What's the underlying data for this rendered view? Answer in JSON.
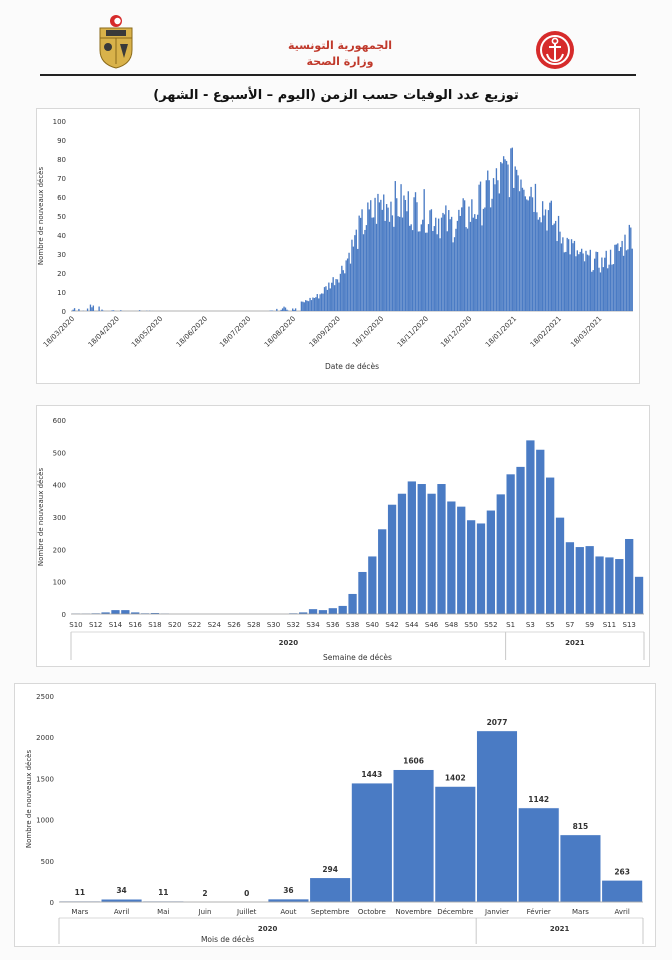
{
  "header": {
    "ministry_line1": "الجمهورية التونسية",
    "ministry_line2": "وزارة الصحة",
    "title": "توزيع عدد الوفيات حسب الزمن (اليوم – الأسبوع - الشهر)"
  },
  "colors": {
    "bar": "#4a7bc4",
    "accent": "#d62b2b"
  },
  "chart_data": [
    {
      "type": "bar",
      "title": "",
      "xlabel": "Date de décès",
      "ylabel": "Nombre de nouveaux décès",
      "ylim": [
        0,
        100
      ],
      "yticks": [
        0,
        10,
        20,
        30,
        40,
        50,
        60,
        70,
        80,
        90,
        100
      ],
      "x_range": [
        "2020-03-18",
        "2021-04-10"
      ],
      "tick_labels": [
        "18/03/2020",
        "18/04/2020",
        "18/05/2020",
        "18/06/2020",
        "18/07/2020",
        "18/08/2020",
        "18/09/2020",
        "18/10/2020",
        "18/11/2020",
        "18/12/2020",
        "18/01/2021",
        "18/02/2021",
        "18/03/2021"
      ],
      "series_profile": [
        {
          "date": "2020-03-18",
          "value": 1
        },
        {
          "date": "2020-04-05",
          "value": 3
        },
        {
          "date": "2020-04-15",
          "value": 1
        },
        {
          "date": "2020-05-15",
          "value": 0
        },
        {
          "date": "2020-08-01",
          "value": 0
        },
        {
          "date": "2020-08-20",
          "value": 3
        },
        {
          "date": "2020-09-05",
          "value": 8
        },
        {
          "date": "2020-09-20",
          "value": 20
        },
        {
          "date": "2020-10-05",
          "value": 45
        },
        {
          "date": "2020-10-20",
          "value": 58
        },
        {
          "date": "2020-11-05",
          "value": 55
        },
        {
          "date": "2020-11-20",
          "value": 52
        },
        {
          "date": "2020-12-05",
          "value": 45
        },
        {
          "date": "2020-12-20",
          "value": 52
        },
        {
          "date": "2021-01-05",
          "value": 65
        },
        {
          "date": "2021-01-18",
          "value": 78
        },
        {
          "date": "2021-01-25",
          "value": 72
        },
        {
          "date": "2021-02-05",
          "value": 58
        },
        {
          "date": "2021-02-20",
          "value": 40
        },
        {
          "date": "2021-03-05",
          "value": 28
        },
        {
          "date": "2021-03-20",
          "value": 25
        },
        {
          "date": "2021-04-01",
          "value": 32
        },
        {
          "date": "2021-04-10",
          "value": 42
        }
      ],
      "grid": false
    },
    {
      "type": "bar",
      "title": "",
      "xlabel": "Semaine de décès",
      "ylabel": "Nombre de nouveaux décès",
      "ylim": [
        0,
        600
      ],
      "yticks": [
        0,
        100,
        200,
        300,
        400,
        500,
        600
      ],
      "categories": [
        "S10",
        "S11",
        "S12",
        "S13",
        "S14",
        "S15",
        "S16",
        "S17",
        "S18",
        "S19",
        "S20",
        "S21",
        "S22",
        "S23",
        "S24",
        "S25",
        "S26",
        "S27",
        "S28",
        "S29",
        "S30",
        "S31",
        "S32",
        "S33",
        "S34",
        "S35",
        "S36",
        "S37",
        "S38",
        "S39",
        "S40",
        "S41",
        "S42",
        "S43",
        "S44",
        "S45",
        "S46",
        "S47",
        "S48",
        "S49",
        "S50",
        "S51",
        "S52",
        "S53",
        "S1",
        "S2",
        "S3",
        "S4",
        "S5",
        "S6",
        "S7",
        "S8",
        "S9",
        "S10",
        "S11",
        "S12",
        "S13",
        "S14"
      ],
      "tick_labels": [
        "S10",
        "S12",
        "S14",
        "S16",
        "S18",
        "S20",
        "S22",
        "S24",
        "S26",
        "S28",
        "S30",
        "S32",
        "S34",
        "S36",
        "S38",
        "S40",
        "S42",
        "S44",
        "S46",
        "S48",
        "S50",
        "S52",
        "S1",
        "S3",
        "S5",
        "S7",
        "S9",
        "S11",
        "S13"
      ],
      "values": [
        1,
        1,
        2,
        5,
        12,
        12,
        5,
        2,
        3,
        1,
        0,
        0,
        0,
        0,
        0,
        0,
        0,
        0,
        0,
        0,
        0,
        0,
        2,
        5,
        15,
        12,
        18,
        25,
        62,
        130,
        178,
        262,
        338,
        372,
        410,
        402,
        372,
        402,
        348,
        332,
        290,
        280,
        320,
        370,
        432,
        455,
        537,
        508,
        422,
        298,
        222,
        207,
        210,
        178,
        175,
        170,
        232,
        115
      ],
      "groups": [
        {
          "label": "2020",
          "from": 0,
          "to": 43
        },
        {
          "label": "2021",
          "from": 44,
          "to": 57
        }
      ],
      "grid": false
    },
    {
      "type": "bar",
      "title": "",
      "xlabel": "Mois de décès",
      "ylabel": "Nombre de nouveaux décès",
      "ylim": [
        0,
        2500
      ],
      "yticks": [
        0,
        500,
        1000,
        1500,
        2000,
        2500
      ],
      "categories": [
        "Mars",
        "Avril",
        "Mai",
        "Juin",
        "Juillet",
        "Aout",
        "Septembre",
        "Octobre",
        "Novembre",
        "Décembre",
        "Janvier",
        "Février",
        "Mars",
        "Avril"
      ],
      "values": [
        11,
        34,
        11,
        2,
        0,
        36,
        294,
        1443,
        1606,
        1402,
        2077,
        1142,
        815,
        263
      ],
      "groups": [
        {
          "label": "2020",
          "from": 0,
          "to": 9
        },
        {
          "label": "2021",
          "from": 10,
          "to": 13
        }
      ],
      "data_labels": true,
      "grid": false
    }
  ]
}
